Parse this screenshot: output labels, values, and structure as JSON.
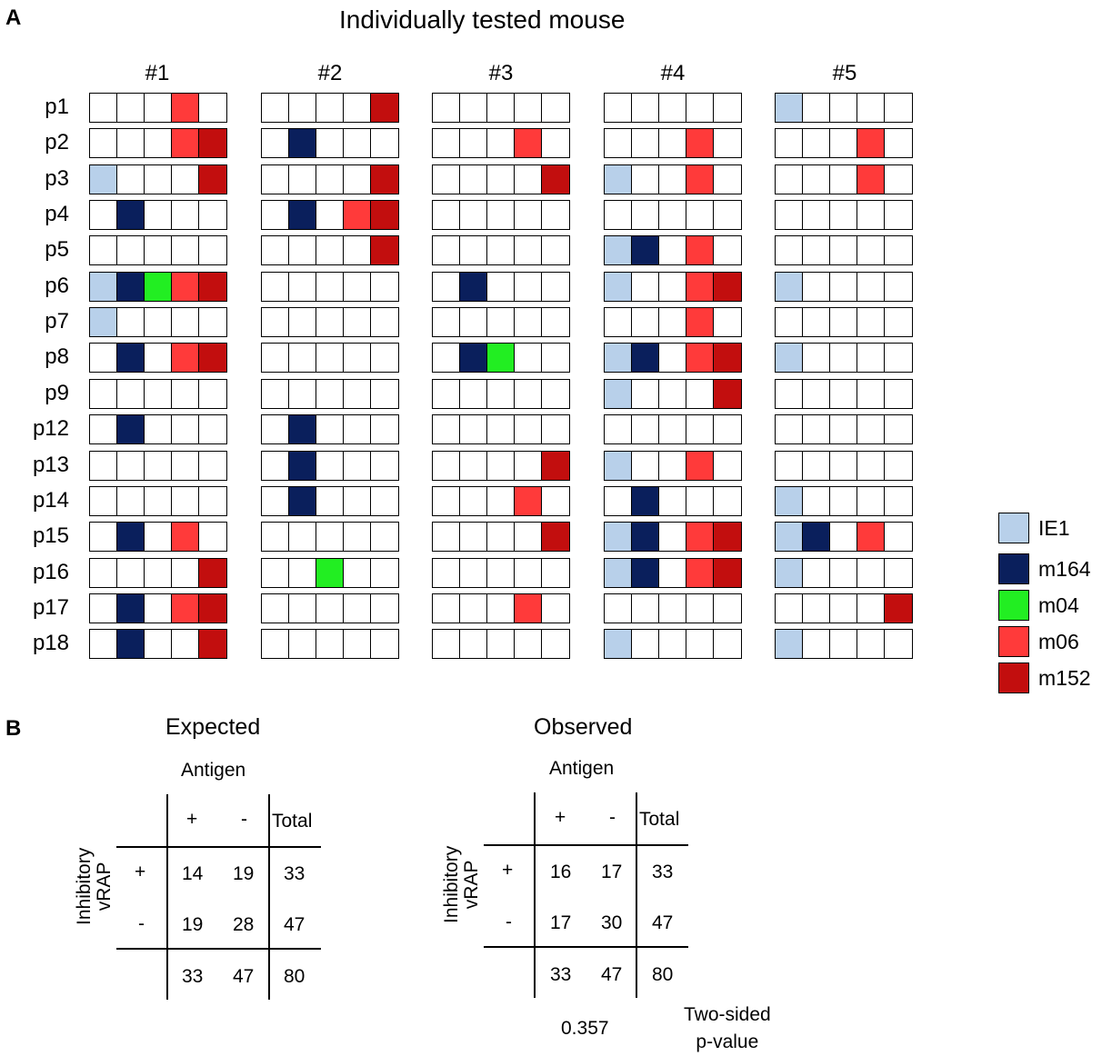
{
  "panel_a": {
    "label": "A",
    "title": "Individually tested mouse",
    "mice": [
      "#1",
      "#2",
      "#3",
      "#4",
      "#5"
    ],
    "peptides": [
      "p1",
      "p2",
      "p3",
      "p4",
      "p5",
      "p6",
      "p7",
      "p8",
      "p9",
      "p12",
      "p13",
      "p14",
      "p15",
      "p16",
      "p17",
      "p18"
    ],
    "colors": {
      "0": "#ffffff",
      "1": "#b8d0ea",
      "2": "#0a1f5c",
      "3": "#22ee22",
      "4": "#ff3a3a",
      "5": "#c20e0e"
    },
    "legend": [
      {
        "label": "IE1",
        "code": 1
      },
      {
        "label": "m164",
        "code": 2
      },
      {
        "label": "m04",
        "code": 3
      },
      {
        "label": "m06",
        "code": 4
      },
      {
        "label": "m152",
        "code": 5
      }
    ],
    "grids": [
      [
        [
          0,
          0,
          0,
          4,
          0
        ],
        [
          0,
          0,
          0,
          4,
          5
        ],
        [
          1,
          0,
          0,
          0,
          5
        ],
        [
          0,
          2,
          0,
          0,
          0
        ],
        [
          0,
          0,
          0,
          0,
          0
        ],
        [
          1,
          2,
          3,
          4,
          5
        ],
        [
          1,
          0,
          0,
          0,
          0
        ],
        [
          0,
          2,
          0,
          4,
          5
        ],
        [
          0,
          0,
          0,
          0,
          0
        ],
        [
          0,
          2,
          0,
          0,
          0
        ],
        [
          0,
          0,
          0,
          0,
          0
        ],
        [
          0,
          0,
          0,
          0,
          0
        ],
        [
          0,
          2,
          0,
          4,
          0
        ],
        [
          0,
          0,
          0,
          0,
          5
        ],
        [
          0,
          2,
          0,
          4,
          5
        ],
        [
          0,
          2,
          0,
          0,
          5
        ]
      ],
      [
        [
          0,
          0,
          0,
          0,
          5
        ],
        [
          0,
          2,
          0,
          0,
          0
        ],
        [
          0,
          0,
          0,
          0,
          5
        ],
        [
          0,
          2,
          0,
          4,
          5
        ],
        [
          0,
          0,
          0,
          0,
          5
        ],
        [
          0,
          0,
          0,
          0,
          0
        ],
        [
          0,
          0,
          0,
          0,
          0
        ],
        [
          0,
          0,
          0,
          0,
          0
        ],
        [
          0,
          0,
          0,
          0,
          0
        ],
        [
          0,
          2,
          0,
          0,
          0
        ],
        [
          0,
          2,
          0,
          0,
          0
        ],
        [
          0,
          2,
          0,
          0,
          0
        ],
        [
          0,
          0,
          0,
          0,
          0
        ],
        [
          0,
          0,
          3,
          0,
          0
        ],
        [
          0,
          0,
          0,
          0,
          0
        ],
        [
          0,
          0,
          0,
          0,
          0
        ]
      ],
      [
        [
          0,
          0,
          0,
          0,
          0
        ],
        [
          0,
          0,
          0,
          4,
          0
        ],
        [
          0,
          0,
          0,
          0,
          5
        ],
        [
          0,
          0,
          0,
          0,
          0
        ],
        [
          0,
          0,
          0,
          0,
          0
        ],
        [
          0,
          2,
          0,
          0,
          0
        ],
        [
          0,
          0,
          0,
          0,
          0
        ],
        [
          0,
          2,
          3,
          0,
          0
        ],
        [
          0,
          0,
          0,
          0,
          0
        ],
        [
          0,
          0,
          0,
          0,
          0
        ],
        [
          0,
          0,
          0,
          0,
          5
        ],
        [
          0,
          0,
          0,
          4,
          0
        ],
        [
          0,
          0,
          0,
          0,
          5
        ],
        [
          0,
          0,
          0,
          0,
          0
        ],
        [
          0,
          0,
          0,
          4,
          0
        ],
        [
          0,
          0,
          0,
          0,
          0
        ]
      ],
      [
        [
          0,
          0,
          0,
          0,
          0
        ],
        [
          0,
          0,
          0,
          4,
          0
        ],
        [
          1,
          0,
          0,
          4,
          0
        ],
        [
          0,
          0,
          0,
          0,
          0
        ],
        [
          1,
          2,
          0,
          4,
          0
        ],
        [
          1,
          0,
          0,
          4,
          5
        ],
        [
          0,
          0,
          0,
          4,
          0
        ],
        [
          1,
          2,
          0,
          4,
          5
        ],
        [
          1,
          0,
          0,
          0,
          5
        ],
        [
          0,
          0,
          0,
          0,
          0
        ],
        [
          1,
          0,
          0,
          4,
          0
        ],
        [
          0,
          2,
          0,
          0,
          0
        ],
        [
          1,
          2,
          0,
          4,
          5
        ],
        [
          1,
          2,
          0,
          4,
          5
        ],
        [
          0,
          0,
          0,
          0,
          0
        ],
        [
          1,
          0,
          0,
          0,
          0
        ]
      ],
      [
        [
          1,
          0,
          0,
          0,
          0
        ],
        [
          0,
          0,
          0,
          4,
          0
        ],
        [
          0,
          0,
          0,
          4,
          0
        ],
        [
          0,
          0,
          0,
          0,
          0
        ],
        [
          0,
          0,
          0,
          0,
          0
        ],
        [
          1,
          0,
          0,
          0,
          0
        ],
        [
          0,
          0,
          0,
          0,
          0
        ],
        [
          1,
          0,
          0,
          0,
          0
        ],
        [
          0,
          0,
          0,
          0,
          0
        ],
        [
          0,
          0,
          0,
          0,
          0
        ],
        [
          0,
          0,
          0,
          0,
          0
        ],
        [
          1,
          0,
          0,
          0,
          0
        ],
        [
          1,
          2,
          0,
          4,
          0
        ],
        [
          1,
          0,
          0,
          0,
          0
        ],
        [
          0,
          0,
          0,
          0,
          5
        ],
        [
          1,
          0,
          0,
          0,
          0
        ]
      ]
    ]
  },
  "panel_b": {
    "label": "B",
    "expected": {
      "title": "Expected",
      "antigen": "Antigen",
      "col_plus": "+",
      "col_minus": "-",
      "col_total": "Total",
      "row_label_1": "Inhibitory",
      "row_label_2": "vRAP",
      "row_plus": "+",
      "row_minus": "-",
      "r1c1": "14",
      "r1c2": "19",
      "r1c3": "33",
      "r2c1": "19",
      "r2c2": "28",
      "r2c3": "47",
      "r3c1": "33",
      "r3c2": "47",
      "r3c3": "80"
    },
    "observed": {
      "title": "Observed",
      "antigen": "Antigen",
      "col_plus": "+",
      "col_minus": "-",
      "col_total": "Total",
      "row_label_1": "Inhibitory",
      "row_label_2": "vRAP",
      "row_plus": "+",
      "row_minus": "-",
      "r1c1": "16",
      "r1c2": "17",
      "r1c3": "33",
      "r2c1": "17",
      "r2c2": "30",
      "r2c3": "47",
      "r3c1": "33",
      "r3c2": "47",
      "r3c3": "80"
    },
    "p_value": "0.357",
    "p_value_label_1": "Two-sided",
    "p_value_label_2": "p-value"
  }
}
